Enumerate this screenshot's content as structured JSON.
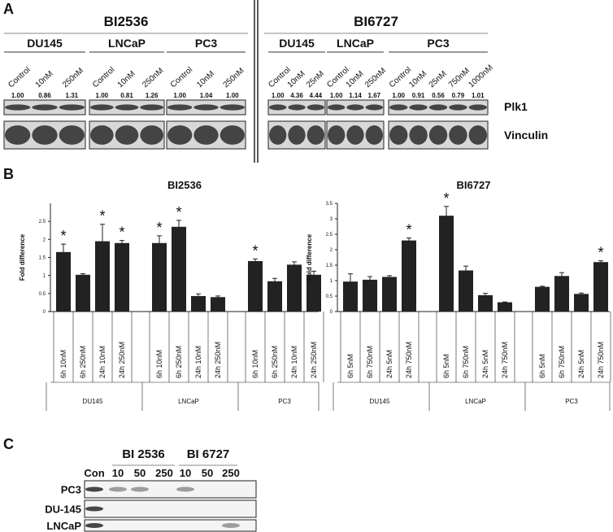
{
  "panel_a": {
    "label": "A",
    "treatments": [
      {
        "title": "BI2536",
        "cell_lines": [
          {
            "name": "DU145",
            "lanes": [
              "Control",
              "10nM",
              "250nM"
            ],
            "values": [
              "1.00",
              "0.86",
              "1.31"
            ]
          },
          {
            "name": "LNCaP",
            "lanes": [
              "Control",
              "10nM",
              "250nM"
            ],
            "values": [
              "1.00",
              "0.81",
              "1.26"
            ]
          },
          {
            "name": "PC3",
            "lanes": [
              "Control",
              "10nM",
              "250nM"
            ],
            "values": [
              "1.00",
              "1.04",
              "1.00"
            ]
          }
        ]
      },
      {
        "title": "BI6727",
        "cell_lines": [
          {
            "name": "DU145",
            "lanes": [
              "Control",
              "10nM",
              "25nM"
            ],
            "values": [
              "1.00",
              "4.36",
              "4.44"
            ]
          },
          {
            "name": "LNCaP",
            "lanes": [
              "Control",
              "10nM",
              "250nM"
            ],
            "values": [
              "1.00",
              "1.14",
              "1.67"
            ]
          },
          {
            "name": "PC3",
            "lanes": [
              "Control",
              "10nM",
              "25nM",
              "750nM",
              "1000nM"
            ],
            "values": [
              "1.00",
              "0.91",
              "0.56",
              "0.79",
              "1.01"
            ]
          }
        ]
      }
    ],
    "rows": [
      "Plk1",
      "Vinculin"
    ]
  },
  "panel_b_label": "B",
  "chart_data": [
    {
      "type": "bar",
      "title": "BI2536",
      "y_label": "Fold difference",
      "color": "#222222",
      "groups": [
        "DU145",
        "LNCaP",
        "PC3"
      ],
      "categories": [
        "6h 10nM",
        "6h 250nM",
        "24h 10nM",
        "24h 250nM",
        "6h 10nM",
        "6h 250nM",
        "24h 10nM",
        "24h 250nM",
        "6h 10nM",
        "6h 250nM",
        "24h 10nM",
        "24h 250nM"
      ],
      "values": [
        1.65,
        1.02,
        1.95,
        1.9,
        1.9,
        2.35,
        0.43,
        0.4,
        1.4,
        0.84,
        1.3,
        1.02
      ],
      "errors": [
        0.22,
        0.03,
        0.47,
        0.07,
        0.2,
        0.18,
        0.06,
        0.03,
        0.06,
        0.08,
        0.08,
        0.1
      ],
      "markers": [
        "*",
        null,
        "*",
        "*",
        "*",
        "*",
        null,
        null,
        "*",
        null,
        null,
        null
      ],
      "ylim": [
        0,
        3
      ],
      "yticks": [
        0,
        0.5,
        1,
        1.5,
        2,
        2.5
      ]
    },
    {
      "type": "bar",
      "title": "BI6727",
      "y_label": "Fold difference",
      "color": "#222222",
      "groups": [
        "DU145",
        "LNCaP",
        "PC3"
      ],
      "categories": [
        "6h 5nM",
        "6h 750nM",
        "24h 5nM",
        "24h 750nM",
        "6h 5nM",
        "6h 750nM",
        "24h 5nM",
        "24h 750nM",
        "6h 5nM",
        "6h 750nM",
        "24h 5nM",
        "24h 750nM"
      ],
      "values": [
        0.97,
        1.03,
        1.12,
        2.3,
        3.1,
        1.33,
        0.53,
        0.3,
        0.8,
        1.15,
        0.57,
        1.6
      ],
      "errors": [
        0.25,
        0.1,
        0.04,
        0.08,
        0.3,
        0.14,
        0.06,
        0.01,
        0.02,
        0.11,
        0.03,
        0.04
      ],
      "markers": [
        null,
        null,
        null,
        "*",
        "*",
        null,
        null,
        null,
        null,
        null,
        null,
        "*"
      ],
      "ylim": [
        0,
        3.5
      ],
      "yticks": [
        0,
        0.5,
        1,
        1.5,
        2,
        2.5,
        3,
        3.5
      ]
    }
  ],
  "panel_c": {
    "label": "C",
    "treatments": [
      "BI 2536",
      "BI 6727"
    ],
    "lanes": [
      "Con",
      "10",
      "50",
      "250",
      "10",
      "50",
      "250"
    ],
    "rows": [
      "PC3",
      "DU-145",
      "LNCaP"
    ]
  }
}
